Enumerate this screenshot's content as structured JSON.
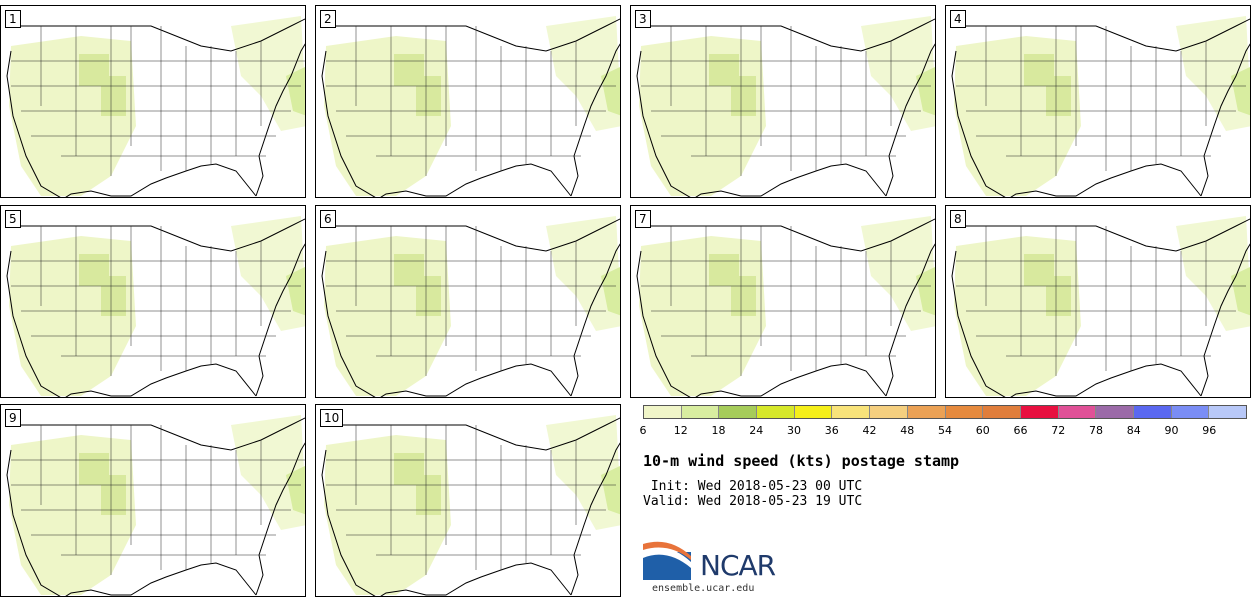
{
  "panels": [
    "1",
    "2",
    "3",
    "4",
    "5",
    "6",
    "7",
    "8",
    "9",
    "10"
  ],
  "colorbar": {
    "colors": [
      "#f0f5c8",
      "#d8eda0",
      "#a6cc5a",
      "#d6e82a",
      "#f5ef1a",
      "#f8e37a",
      "#f5cf7f",
      "#eba155",
      "#e68a3e",
      "#e07e3c",
      "#e81040",
      "#e05097",
      "#9b6aa8",
      "#5a68f0",
      "#7a8df5",
      "#b8c8f8"
    ],
    "labels": [
      "6",
      "12",
      "18",
      "24",
      "30",
      "36",
      "42",
      "48",
      "54",
      "60",
      "66",
      "72",
      "78",
      "84",
      "90",
      "96"
    ]
  },
  "title": "10-m wind speed (kts) postage stamp",
  "init_line": " Init: Wed 2018-05-23 00 UTC",
  "valid_line": "Valid: Wed 2018-05-23 19 UTC",
  "logo": {
    "text": "NCAR",
    "url": "ensemble.ucar.edu",
    "blue": "#1f5fa8"
  }
}
